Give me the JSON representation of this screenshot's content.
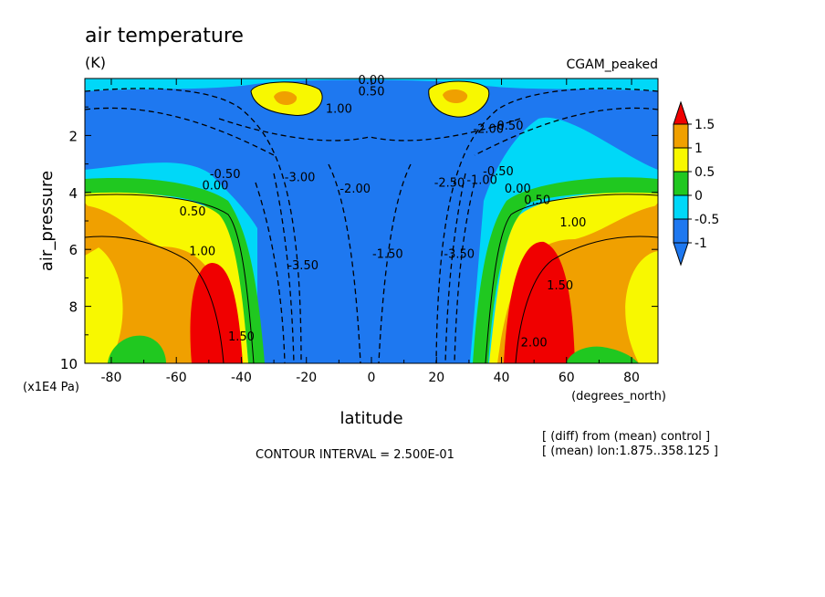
{
  "chart_data": {
    "type": "heatmap",
    "title": "air temperature",
    "units": "(K)",
    "dataset_label": "CGAM_peaked",
    "xlabel": "latitude",
    "x_units": "(degrees_north)",
    "ylabel": "air_pressure",
    "y_units": "(x1E4 Pa)",
    "x_ticks": [
      "-80",
      "-60",
      "-40",
      "-20",
      "0",
      "20",
      "40",
      "60",
      "80"
    ],
    "y_ticks": [
      "2",
      "4",
      "6",
      "8",
      "10"
    ],
    "xlim": [
      -88.125,
      88.125
    ],
    "ylim": [
      10,
      0
    ],
    "y_inverted": true,
    "contour_interval_text": "CONTOUR INTERVAL = 2.500E-01",
    "notes": [
      "[ (diff) from (mean) control ]",
      "[ (mean) lon:1.875..358.125 ]"
    ],
    "colorbar": {
      "levels": [
        -1,
        -0.5,
        0,
        0.5,
        1,
        1.5
      ],
      "labels": [
        "1.5",
        "1",
        "0.5",
        "0",
        "-0.5",
        "-1"
      ],
      "colors": [
        "#1e78f0",
        "#00d8f8",
        "#20c820",
        "#f8f800",
        "#f0a000",
        "#f00000"
      ],
      "arrow_low": "#1e78f0",
      "arrow_high": "#f00000"
    },
    "contour_labels": [
      {
        "text": "0.00",
        "x": 0,
        "y": 0.2
      },
      {
        "text": "0.50",
        "x": 0,
        "y": 0.6
      },
      {
        "text": "1.00",
        "x": -10,
        "y": 1.2
      },
      {
        "text": "-0.50",
        "x": -45,
        "y": 3.5
      },
      {
        "text": "0.00",
        "x": -48,
        "y": 3.9
      },
      {
        "text": "0.50",
        "x": -55,
        "y": 4.8
      },
      {
        "text": "1.00",
        "x": -52,
        "y": 6.2
      },
      {
        "text": "1.50",
        "x": -40,
        "y": 9.2
      },
      {
        "text": "-3.00",
        "x": -22,
        "y": 3.6
      },
      {
        "text": "-2.00",
        "x": -5,
        "y": 4.0
      },
      {
        "text": "-3.50",
        "x": -21,
        "y": 6.7
      },
      {
        "text": "-1.50",
        "x": 5,
        "y": 6.3
      },
      {
        "text": "-2.50",
        "x": 24,
        "y": 3.8
      },
      {
        "text": "-3.50",
        "x": 27,
        "y": 6.3
      },
      {
        "text": "-2.00",
        "x": 36,
        "y": 1.9
      },
      {
        "text": "-0.50",
        "x": 42,
        "y": 1.8
      },
      {
        "text": "-1.00",
        "x": 34,
        "y": 3.7
      },
      {
        "text": "-0.50",
        "x": 39,
        "y": 3.4
      },
      {
        "text": "0.00",
        "x": 45,
        "y": 4.0
      },
      {
        "text": "0.50",
        "x": 51,
        "y": 4.4
      },
      {
        "text": "1.00",
        "x": 62,
        "y": 5.2
      },
      {
        "text": "1.50",
        "x": 58,
        "y": 7.4
      },
      {
        "text": "2.00",
        "x": 50,
        "y": 9.4
      }
    ]
  }
}
